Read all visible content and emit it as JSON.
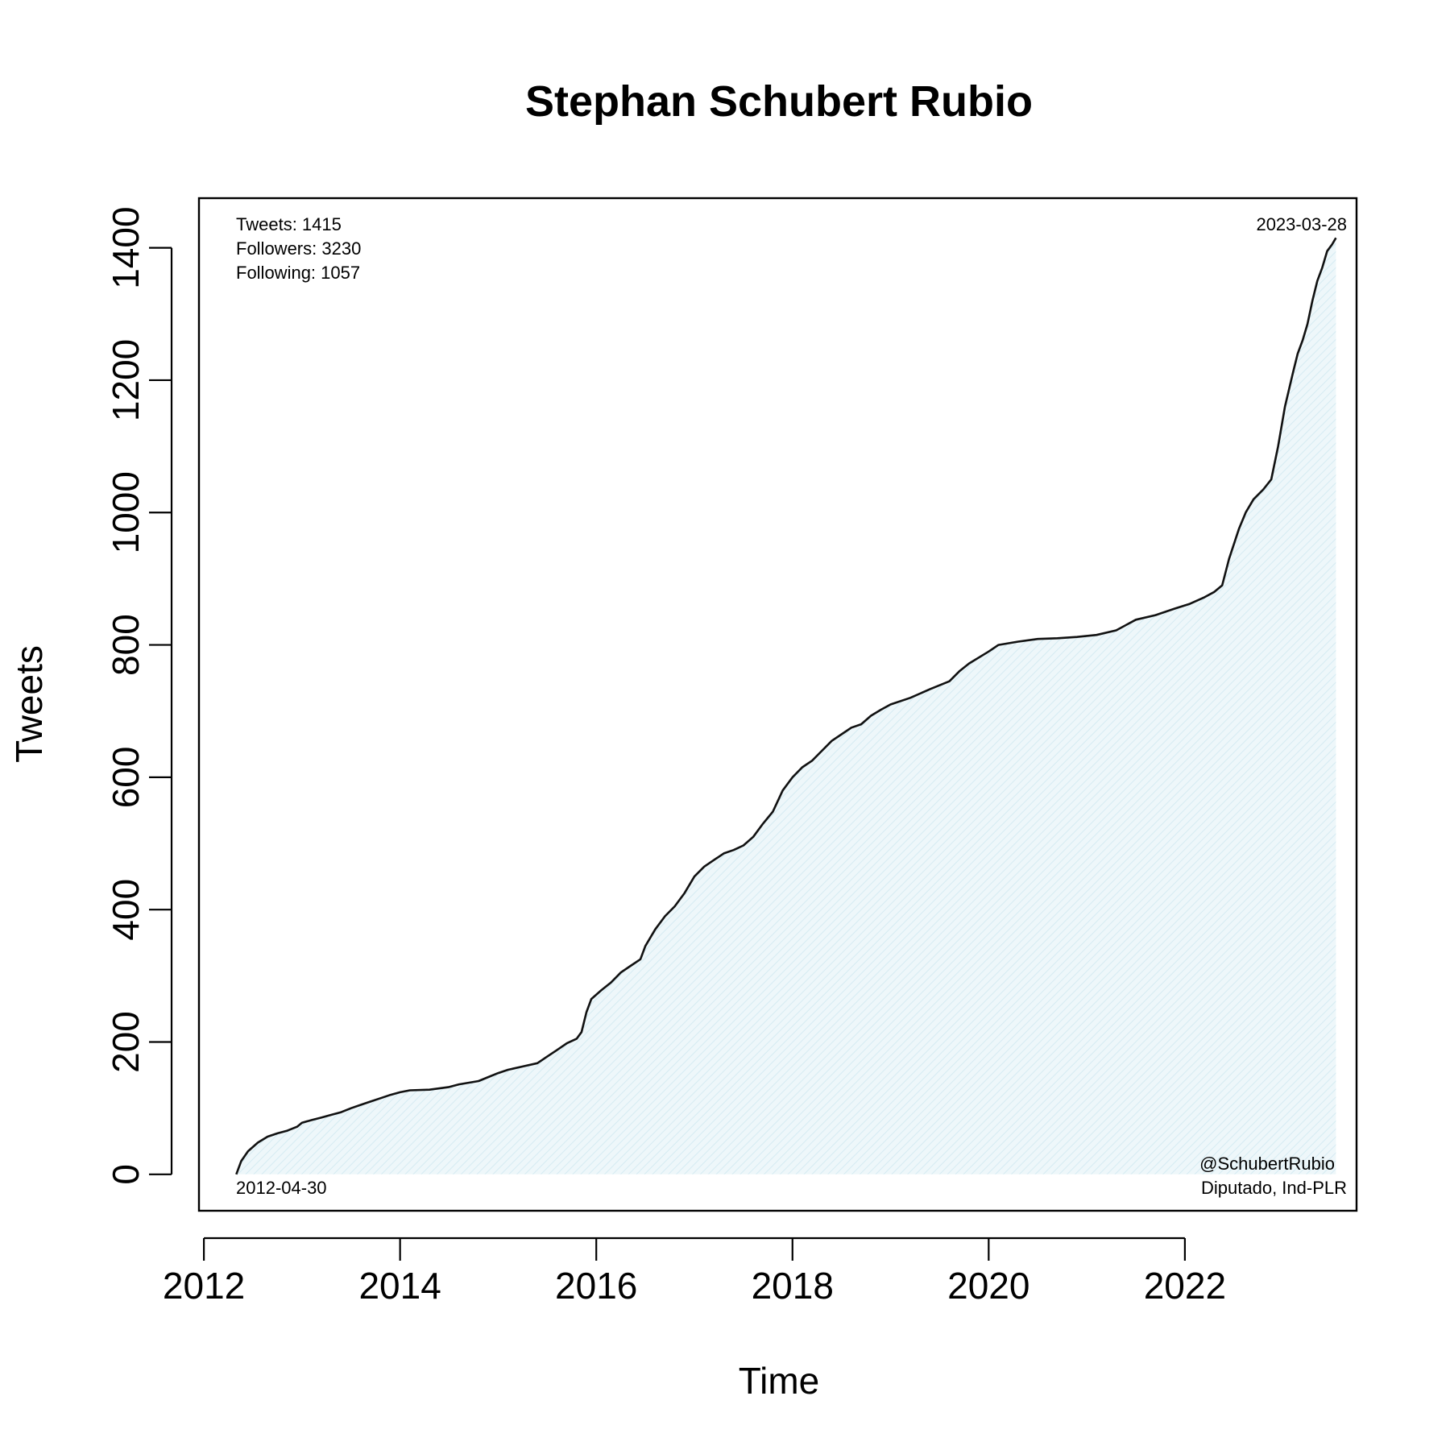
{
  "chart_data": {
    "type": "area",
    "title": "Stephan Schubert Rubio",
    "xlabel": "Time",
    "ylabel": "Tweets",
    "xlim": [
      2011.95,
      2023.75
    ],
    "ylim": [
      -55,
      1475
    ],
    "x_ticks": [
      "2012",
      "2014",
      "2016",
      "2018",
      "2020",
      "2022"
    ],
    "y_ticks": [
      "0",
      "200",
      "400",
      "600",
      "800",
      "1000",
      "1200",
      "1400"
    ],
    "annotations": {
      "stats": [
        "Tweets: 1415",
        "Followers: 3230",
        "Following: 1057"
      ],
      "start_date": "2012-04-30",
      "end_date": "2023-03-28",
      "handle": "@SchubertRubio",
      "role": "Diputado, Ind-PLR"
    },
    "colors": {
      "fill": "#e4f2f6",
      "line": "#111111"
    },
    "series": [
      {
        "points": [
          [
            2012.33,
            0
          ],
          [
            2012.38,
            20
          ],
          [
            2012.45,
            35
          ],
          [
            2012.55,
            48
          ],
          [
            2012.65,
            57
          ],
          [
            2012.75,
            62
          ],
          [
            2012.85,
            66
          ],
          [
            2012.95,
            72
          ],
          [
            2013.0,
            78
          ],
          [
            2013.1,
            82
          ],
          [
            2013.2,
            86
          ],
          [
            2013.3,
            90
          ],
          [
            2013.4,
            94
          ],
          [
            2013.5,
            100
          ],
          [
            2013.6,
            105
          ],
          [
            2013.7,
            110
          ],
          [
            2013.8,
            115
          ],
          [
            2013.9,
            120
          ],
          [
            2014.0,
            124
          ],
          [
            2014.1,
            127
          ],
          [
            2014.3,
            128
          ],
          [
            2014.5,
            132
          ],
          [
            2014.6,
            136
          ],
          [
            2014.8,
            141
          ],
          [
            2014.9,
            147
          ],
          [
            2015.0,
            153
          ],
          [
            2015.1,
            158
          ],
          [
            2015.25,
            163
          ],
          [
            2015.4,
            168
          ],
          [
            2015.5,
            178
          ],
          [
            2015.6,
            188
          ],
          [
            2015.7,
            198
          ],
          [
            2015.8,
            205
          ],
          [
            2015.85,
            215
          ],
          [
            2015.9,
            245
          ],
          [
            2015.95,
            265
          ],
          [
            2016.05,
            278
          ],
          [
            2016.15,
            290
          ],
          [
            2016.25,
            305
          ],
          [
            2016.35,
            315
          ],
          [
            2016.45,
            325
          ],
          [
            2016.5,
            345
          ],
          [
            2016.6,
            370
          ],
          [
            2016.7,
            390
          ],
          [
            2016.8,
            405
          ],
          [
            2016.9,
            425
          ],
          [
            2017.0,
            450
          ],
          [
            2017.1,
            465
          ],
          [
            2017.2,
            475
          ],
          [
            2017.3,
            485
          ],
          [
            2017.4,
            490
          ],
          [
            2017.5,
            497
          ],
          [
            2017.6,
            510
          ],
          [
            2017.7,
            530
          ],
          [
            2017.8,
            548
          ],
          [
            2017.9,
            580
          ],
          [
            2018.0,
            600
          ],
          [
            2018.1,
            615
          ],
          [
            2018.2,
            625
          ],
          [
            2018.3,
            640
          ],
          [
            2018.4,
            655
          ],
          [
            2018.5,
            665
          ],
          [
            2018.6,
            675
          ],
          [
            2018.7,
            680
          ],
          [
            2018.8,
            693
          ],
          [
            2018.9,
            702
          ],
          [
            2019.0,
            710
          ],
          [
            2019.2,
            720
          ],
          [
            2019.4,
            733
          ],
          [
            2019.6,
            745
          ],
          [
            2019.7,
            760
          ],
          [
            2019.8,
            772
          ],
          [
            2020.0,
            790
          ],
          [
            2020.1,
            800
          ],
          [
            2020.3,
            805
          ],
          [
            2020.5,
            809
          ],
          [
            2020.7,
            810
          ],
          [
            2020.9,
            812
          ],
          [
            2021.1,
            815
          ],
          [
            2021.3,
            822
          ],
          [
            2021.5,
            838
          ],
          [
            2021.7,
            845
          ],
          [
            2021.9,
            855
          ],
          [
            2022.05,
            862
          ],
          [
            2022.2,
            872
          ],
          [
            2022.3,
            880
          ],
          [
            2022.38,
            890
          ],
          [
            2022.45,
            930
          ],
          [
            2022.55,
            975
          ],
          [
            2022.62,
            1000
          ],
          [
            2022.7,
            1020
          ],
          [
            2022.8,
            1035
          ],
          [
            2022.88,
            1050
          ],
          [
            2022.95,
            1100
          ],
          [
            2023.02,
            1160
          ],
          [
            2023.1,
            1210
          ],
          [
            2023.15,
            1240
          ],
          [
            2023.2,
            1260
          ],
          [
            2023.25,
            1285
          ],
          [
            2023.3,
            1320
          ],
          [
            2023.35,
            1350
          ],
          [
            2023.4,
            1370
          ],
          [
            2023.45,
            1395
          ],
          [
            2023.5,
            1405
          ],
          [
            2023.54,
            1415
          ]
        ]
      }
    ]
  }
}
